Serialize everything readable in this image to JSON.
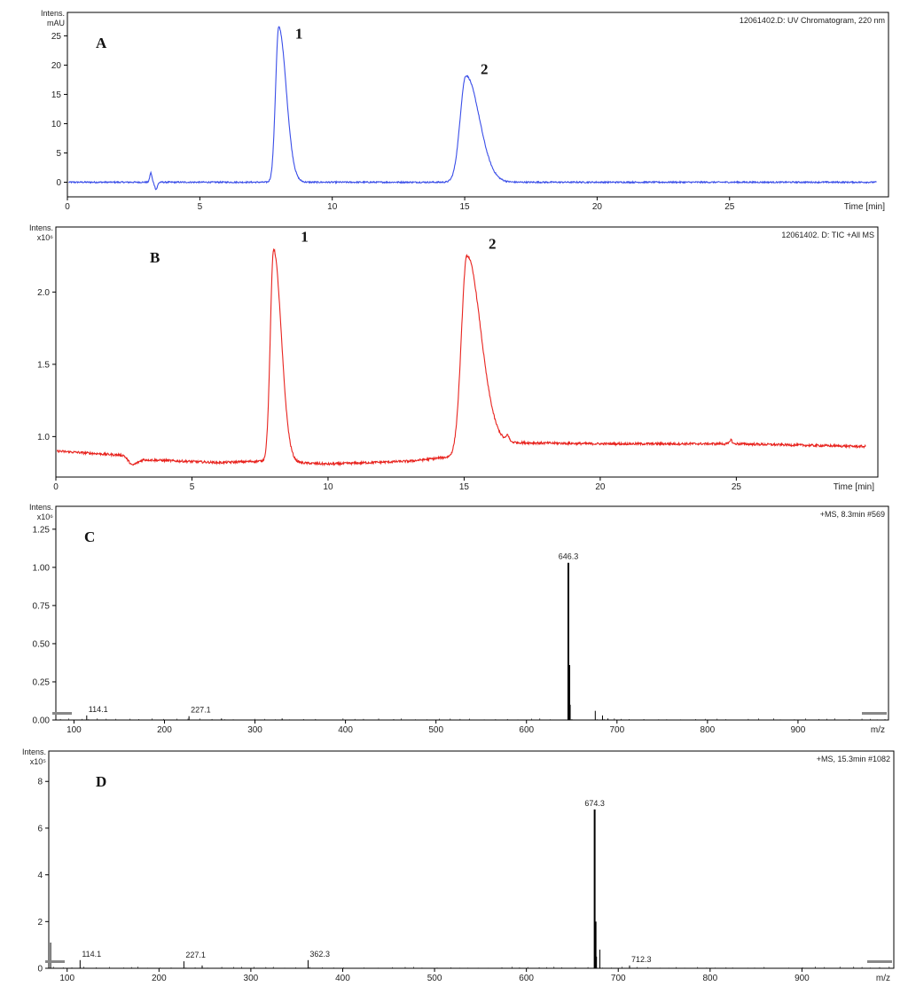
{
  "chart_data": [
    {
      "type": "line",
      "panel_label": "A",
      "title": "12061402.D: UV Chromatogram, 220 nm",
      "ylabel": [
        "Intens.",
        "mAU"
      ],
      "xlabel": "Time [min]",
      "xlim": [
        0,
        31
      ],
      "ylim": [
        -2.5,
        29
      ],
      "x_ticks": [
        0,
        5,
        10,
        15,
        20,
        25
      ],
      "y_ticks": [
        0,
        5,
        10,
        15,
        20,
        25
      ],
      "color": "#3a4ee8",
      "baseline": 0,
      "noise": 0.12,
      "features": [
        {
          "kind": "gauss",
          "t": 3.15,
          "h": 1.6,
          "w": 0.04
        },
        {
          "kind": "gauss",
          "t": 3.35,
          "h": -1.2,
          "w": 0.05
        },
        {
          "kind": "peak",
          "t": 7.98,
          "h": 26.5,
          "rise": 0.12,
          "decay": 0.28
        },
        {
          "kind": "peak",
          "t": 15.05,
          "h": 18.2,
          "rise": 0.22,
          "decay": 0.5
        }
      ],
      "peak_labels": [
        {
          "text": "1",
          "x": 8.6,
          "y": 24.5
        },
        {
          "text": "2",
          "x": 15.6,
          "y": 18.5
        }
      ]
    },
    {
      "type": "line",
      "panel_label": "B",
      "title": "12061402. D: TIC +All MS",
      "ylabel": [
        "Intens.",
        "x10⁶"
      ],
      "xlabel": "Time [min]",
      "xlim": [
        0,
        30.2
      ],
      "ylim": [
        0.72,
        2.45
      ],
      "x_ticks": [
        0,
        5,
        10,
        15,
        20,
        25
      ],
      "y_ticks": [
        1.0,
        1.5,
        2.0
      ],
      "y_tick_labels": [
        "1.0",
        "1.5",
        "2.0"
      ],
      "color": "#e8231e",
      "noise": 0.008,
      "baseline_points": [
        [
          0,
          0.9
        ],
        [
          2.5,
          0.87
        ],
        [
          2.8,
          0.8
        ],
        [
          3.2,
          0.84
        ],
        [
          6.0,
          0.82
        ],
        [
          7.5,
          0.83
        ],
        [
          8.8,
          0.82
        ],
        [
          10.0,
          0.81
        ],
        [
          13.0,
          0.83
        ],
        [
          14.5,
          0.86
        ],
        [
          16.0,
          0.96
        ],
        [
          20.0,
          0.95
        ],
        [
          25.0,
          0.95
        ],
        [
          30.0,
          0.93
        ]
      ],
      "features": [
        {
          "kind": "peak",
          "t": 8.0,
          "h": 1.47,
          "rise": 0.12,
          "decay": 0.28
        },
        {
          "kind": "peak",
          "t": 15.1,
          "h": 1.35,
          "rise": 0.2,
          "decay": 0.5
        },
        {
          "kind": "gauss",
          "t": 16.6,
          "h": 0.04,
          "w": 0.05
        },
        {
          "kind": "gauss",
          "t": 24.8,
          "h": 0.03,
          "w": 0.04
        }
      ],
      "peak_labels": [
        {
          "text": "1",
          "x": 9.0,
          "y": 2.35
        },
        {
          "text": "2",
          "x": 15.9,
          "y": 2.3
        }
      ]
    },
    {
      "type": "bar",
      "panel_label": "C",
      "title": "+MS, 8.3min #569",
      "ylabel": [
        "Intens.",
        "x10⁶"
      ],
      "xlabel": "m/z",
      "xlim": [
        80,
        1000
      ],
      "ylim": [
        0,
        1.4
      ],
      "x_ticks": [
        100,
        200,
        300,
        400,
        500,
        600,
        700,
        800,
        900
      ],
      "y_ticks": [
        0.0,
        0.25,
        0.5,
        0.75,
        1.0,
        1.25
      ],
      "y_tick_labels": [
        "0.00",
        "0.25",
        "0.50",
        "0.75",
        "1.00",
        "1.25"
      ],
      "peaks": [
        {
          "mz": 114.1,
          "i": 0.03
        },
        {
          "mz": 227.1,
          "i": 0.025
        },
        {
          "mz": 263,
          "i": 0.01
        },
        {
          "mz": 330,
          "i": 0.01
        },
        {
          "mz": 646.3,
          "i": 1.03
        },
        {
          "mz": 647.3,
          "i": 0.36
        },
        {
          "mz": 648.3,
          "i": 0.1
        },
        {
          "mz": 676,
          "i": 0.06
        },
        {
          "mz": 684,
          "i": 0.03
        },
        {
          "mz": 690,
          "i": 0.01
        }
      ],
      "peak_annotations": [
        {
          "text": "646.3",
          "mz": 646.3,
          "i": 1.03
        },
        {
          "text": "114.1",
          "mz": 114.1,
          "i": 0.03
        },
        {
          "text": "227.1",
          "mz": 227.1,
          "i": 0.025
        }
      ]
    },
    {
      "type": "bar",
      "panel_label": "D",
      "title": "+MS, 15.3min #1082",
      "ylabel": [
        "Intens.",
        "x10⁵"
      ],
      "xlabel": "m/z",
      "xlim": [
        80,
        1000
      ],
      "ylim": [
        0,
        9.3
      ],
      "x_ticks": [
        100,
        200,
        300,
        400,
        500,
        600,
        700,
        800,
        900
      ],
      "y_ticks": [
        0,
        2,
        4,
        6,
        8
      ],
      "peaks": [
        {
          "mz": 82,
          "i": 1.1
        },
        {
          "mz": 114.1,
          "i": 0.35
        },
        {
          "mz": 227.1,
          "i": 0.3
        },
        {
          "mz": 247,
          "i": 0.12
        },
        {
          "mz": 362.3,
          "i": 0.35
        },
        {
          "mz": 674.3,
          "i": 6.8
        },
        {
          "mz": 675.3,
          "i": 2.0
        },
        {
          "mz": 676.3,
          "i": 0.5
        },
        {
          "mz": 680,
          "i": 0.8
        },
        {
          "mz": 712.3,
          "i": 0.12
        }
      ],
      "peak_annotations": [
        {
          "text": "674.3",
          "mz": 674.3,
          "i": 6.8
        },
        {
          "text": "114.1",
          "mz": 114.1,
          "i": 0.35
        },
        {
          "text": "227.1",
          "mz": 227.1,
          "i": 0.3
        },
        {
          "text": "362.3",
          "mz": 362.3,
          "i": 0.35
        },
        {
          "text": "712.3",
          "mz": 712.3,
          "i": 0.12
        }
      ]
    }
  ]
}
